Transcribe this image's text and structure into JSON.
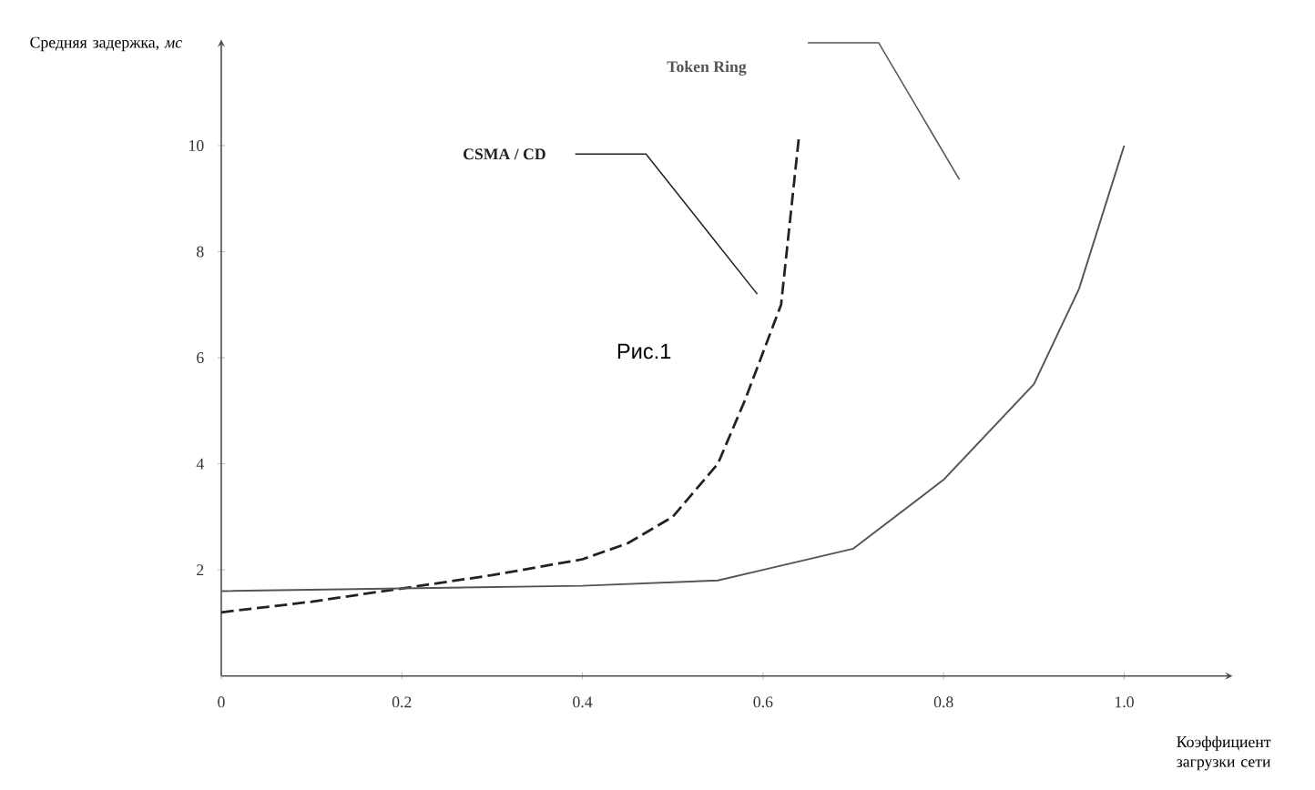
{
  "chart_data": {
    "type": "line",
    "xlabel": "Коэффициент загрузки сети",
    "ylabel": "Средняя задержка, *мс*",
    "xlim": [
      0,
      1.12
    ],
    "ylim": [
      0,
      12
    ],
    "xticks": [
      0,
      {
        "value": 0.2,
        "label": "0.2"
      },
      {
        "value": 0.4,
        "label": "0.4"
      },
      {
        "value": 0.6,
        "label": "0.6"
      },
      {
        "value": 0.8,
        "label": "0.8"
      },
      {
        "value": 1,
        "label": "1.0"
      }
    ],
    "yticks": [
      2,
      4,
      6,
      8,
      10
    ],
    "series": [
      {
        "name": "CSMA / CD",
        "color": "#222222",
        "line_style": "dashed",
        "x": [
          0,
          0.1,
          0.2,
          0.3,
          0.4,
          0.45,
          0.5,
          0.55,
          0.58,
          0.62,
          0.64
        ],
        "values": [
          1.2,
          1.4,
          1.65,
          1.9,
          2.2,
          2.5,
          3.0,
          4.0,
          5.2,
          7.0,
          10.2
        ]
      },
      {
        "name": "Token Ring",
        "color": "#555555",
        "line_style": "solid",
        "x": [
          0,
          0.2,
          0.4,
          0.55,
          0.6,
          0.7,
          0.8,
          0.85,
          0.9,
          0.95,
          1.0
        ],
        "values": [
          1.6,
          1.65,
          1.7,
          1.8,
          2.0,
          2.4,
          3.7,
          4.6,
          5.5,
          7.3,
          10
        ]
      }
    ],
    "annotations": [
      "Рис.1"
    ]
  }
}
